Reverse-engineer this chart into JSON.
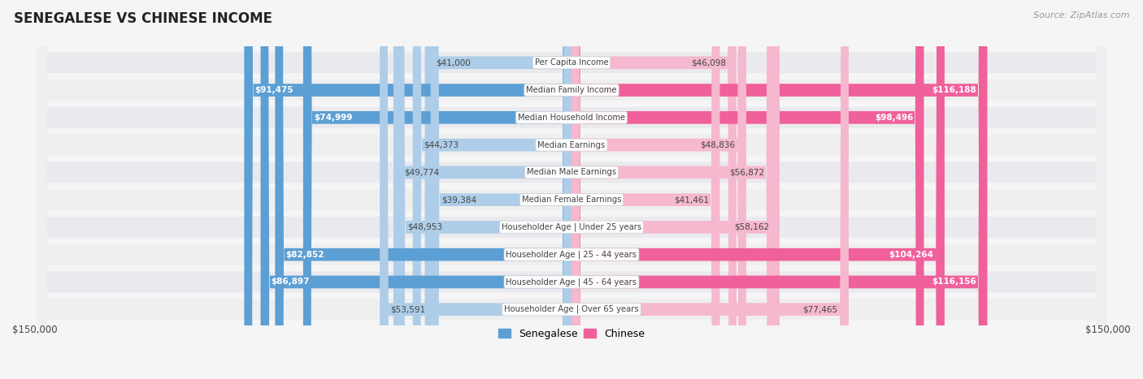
{
  "title": "SENEGALESE VS CHINESE INCOME",
  "source": "Source: ZipAtlas.com",
  "categories": [
    "Per Capita Income",
    "Median Family Income",
    "Median Household Income",
    "Median Earnings",
    "Median Male Earnings",
    "Median Female Earnings",
    "Householder Age | Under 25 years",
    "Householder Age | 25 - 44 years",
    "Householder Age | 45 - 64 years",
    "Householder Age | Over 65 years"
  ],
  "senegalese": [
    41000,
    91475,
    74999,
    44373,
    49774,
    39384,
    48953,
    82852,
    86897,
    53591
  ],
  "chinese": [
    46098,
    116188,
    98496,
    48836,
    56872,
    41461,
    58162,
    104264,
    116156,
    77465
  ],
  "senegalese_labels": [
    "$41,000",
    "$91,475",
    "$74,999",
    "$44,373",
    "$49,774",
    "$39,384",
    "$48,953",
    "$82,852",
    "$86,897",
    "$53,591"
  ],
  "chinese_labels": [
    "$46,098",
    "$116,188",
    "$98,496",
    "$48,836",
    "$56,872",
    "$41,461",
    "$58,162",
    "$104,264",
    "$116,156",
    "$77,465"
  ],
  "max_val": 150000,
  "sen_color_light": "#aecde8",
  "sen_color_dark": "#5c9fd4",
  "chi_color_light": "#f5b8cf",
  "chi_color_dark": "#f0609a",
  "row_bg_even": "#eaeaee",
  "row_bg_odd": "#efefef",
  "bg_color": "#f5f5f5",
  "title_color": "#222222",
  "dark_label_color": "#444444",
  "white_label_color": "#ffffff",
  "axis_label": "$150,000",
  "legend_senegalese": "Senegalese",
  "legend_chinese": "Chinese",
  "sen_dark_threshold": 70000,
  "chi_dark_threshold": 90000
}
